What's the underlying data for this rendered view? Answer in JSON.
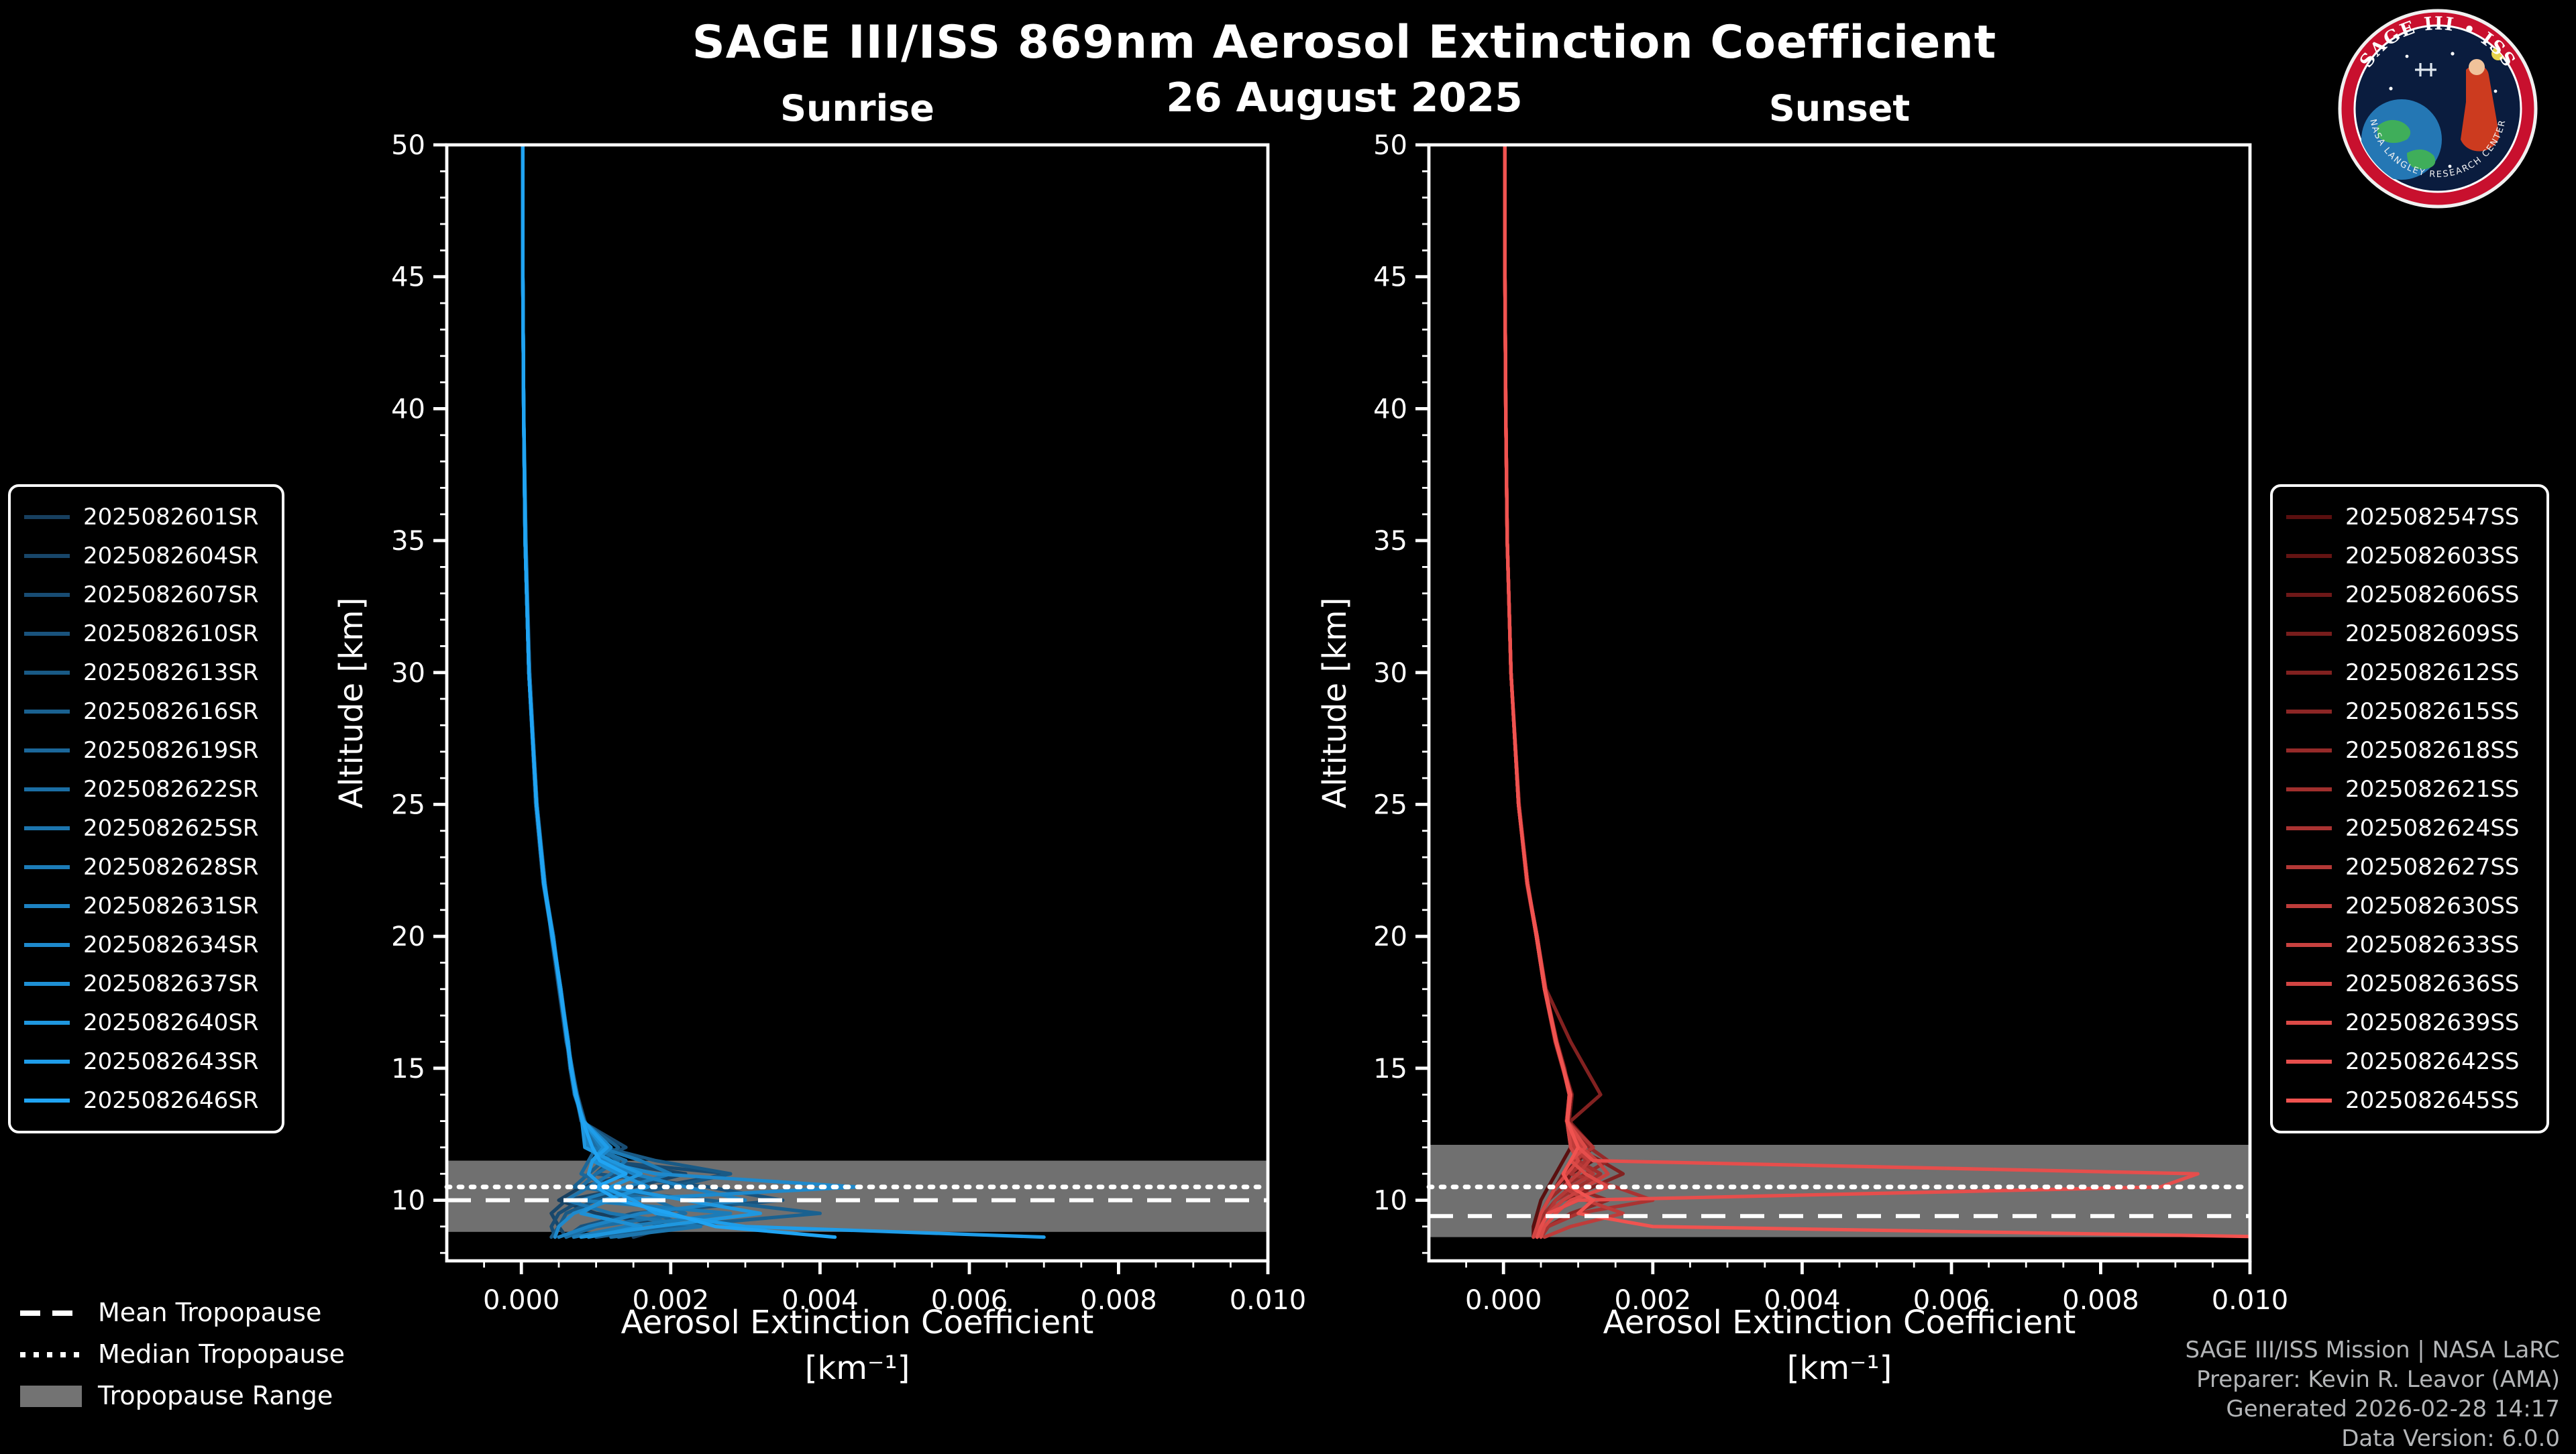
{
  "header": {
    "title": "SAGE III/ISS 869nm Aerosol Extinction Coefficient",
    "date": "26 August 2025"
  },
  "axes": {
    "y_label": "Altitude [km]",
    "x_label_line1": "Aerosol Extinction Coefficient",
    "x_label_line2": "[km⁻¹]"
  },
  "tropopause_legend": {
    "mean": "Mean Tropopause",
    "median": "Median Tropopause",
    "range": "Tropopause Range"
  },
  "footer": {
    "lines": [
      "SAGE III/ISS Mission | NASA LaRC",
      "Preparer: Kevin R. Leavor (AMA)",
      "Generated 2026-02-28 14:17",
      "Data Version: 6.0.0"
    ]
  },
  "logo": {
    "title": "SAGE III • ISS",
    "bottom_text": "NASA LANGLEY RESEARCH CENTER"
  },
  "colors": {
    "background": "#000000",
    "axis": "#ffffff",
    "tropopause_band": "#7f7f7f",
    "sunrise_accent": "#20A4F3",
    "sunset_accent": "#F05350"
  },
  "chart_data": {
    "type": "line",
    "title": "SAGE III/ISS 869nm Aerosol Extinction Coefficient",
    "subtitle": "26 August 2025",
    "xlabel": "Aerosol Extinction Coefficient [km⁻¹]",
    "ylabel": "Altitude [km]",
    "xlim": [
      -0.001,
      0.01
    ],
    "ylim": [
      7.7,
      50
    ],
    "xticks": {
      "values": [
        0,
        0.002,
        0.004,
        0.006,
        0.008,
        0.01
      ],
      "labels": [
        "0.000",
        "0.002",
        "0.004",
        "0.006",
        "0.008",
        "0.010"
      ]
    },
    "yticks": [
      10,
      15,
      20,
      25,
      30,
      35,
      40,
      45,
      50
    ],
    "grid": false,
    "legend_position": "sunrise legend outside-left, sunset legend outside-right",
    "values_unit": "10^-3 km^-1",
    "value_scale": 0.001,
    "altitudes_km": [
      50,
      45,
      40,
      35,
      30,
      25,
      22,
      20,
      18,
      16,
      15,
      14,
      13,
      12,
      11.5,
      11,
      10.5,
      10,
      9.5,
      9,
      8.6
    ],
    "panels": [
      {
        "name": "Sunrise",
        "event_type": "SR",
        "tropopause": {
          "mean_km": 10.0,
          "median_km": 10.5,
          "range_km": [
            8.8,
            11.5
          ]
        },
        "series": [
          {
            "id": "2025082601SR",
            "color": "#173F5F",
            "values": [
              0.02,
              0.02,
              0.03,
              0.05,
              0.1,
              0.2,
              0.3,
              0.42,
              0.52,
              0.62,
              0.66,
              0.72,
              0.82,
              0.95,
              1.2,
              1.5,
              0.8,
              0.5,
              1.0,
              2.0,
              1.5
            ]
          },
          {
            "id": "2025082604SR",
            "color": "#184669",
            "values": [
              0.02,
              0.02,
              0.03,
              0.06,
              0.11,
              0.21,
              0.32,
              0.4,
              0.5,
              0.6,
              0.68,
              0.75,
              0.85,
              1.0,
              1.0,
              2.2,
              1.5,
              0.6,
              0.4,
              0.5,
              0.6
            ]
          },
          {
            "id": "2025082607SR",
            "color": "#184C73",
            "values": [
              0.02,
              0.02,
              0.03,
              0.05,
              0.1,
              0.19,
              0.29,
              0.41,
              0.53,
              0.63,
              0.67,
              0.73,
              0.8,
              1.4,
              1.0,
              2.8,
              1.8,
              0.8,
              0.5,
              0.4,
              0.45
            ]
          },
          {
            "id": "2025082610SR",
            "color": "#19537D",
            "values": [
              0.02,
              0.02,
              0.03,
              0.05,
              0.1,
              0.2,
              0.31,
              0.43,
              0.51,
              0.61,
              0.65,
              0.71,
              0.83,
              0.9,
              1.2,
              1.0,
              2.5,
              3.5,
              1.5,
              0.8,
              0.6
            ]
          },
          {
            "id": "2025082613SR",
            "color": "#195A86",
            "values": [
              0.02,
              0.02,
              0.03,
              0.05,
              0.1,
              0.2,
              0.3,
              0.42,
              0.52,
              0.62,
              0.66,
              0.74,
              0.84,
              1.1,
              1.8,
              2.8,
              2.0,
              1.0,
              0.6,
              0.5,
              0.4
            ]
          },
          {
            "id": "2025082616SR",
            "color": "#1A6190",
            "values": [
              0.02,
              0.02,
              0.03,
              0.05,
              0.11,
              0.2,
              0.3,
              0.41,
              0.52,
              0.63,
              0.67,
              0.72,
              0.81,
              1.3,
              1.1,
              0.9,
              0.7,
              2.5,
              4.0,
              2.0,
              1.0
            ]
          },
          {
            "id": "2025082619SR",
            "color": "#1B679A",
            "values": [
              0.02,
              0.02,
              0.03,
              0.05,
              0.1,
              0.21,
              0.31,
              0.42,
              0.53,
              0.62,
              0.66,
              0.73,
              0.82,
              1.0,
              0.9,
              0.8,
              1.2,
              1.5,
              1.8,
              2.2,
              1.3
            ]
          },
          {
            "id": "2025082622SR",
            "color": "#1B6EA4",
            "values": [
              0.02,
              0.02,
              0.03,
              0.05,
              0.1,
              0.2,
              0.3,
              0.43,
              0.52,
              0.61,
              0.67,
              0.74,
              0.83,
              1.0,
              1.3,
              1.0,
              0.8,
              1.8,
              2.2,
              1.0,
              0.6
            ]
          },
          {
            "id": "2025082625SR",
            "color": "#1C75AE",
            "values": [
              0.02,
              0.02,
              0.03,
              0.05,
              0.1,
              0.2,
              0.31,
              0.42,
              0.51,
              0.62,
              0.68,
              0.73,
              0.81,
              0.95,
              1.4,
              1.2,
              0.9,
              0.6,
              1.2,
              2.4,
              1.2
            ]
          },
          {
            "id": "2025082628SR",
            "color": "#1C7CB8",
            "values": [
              0.02,
              0.02,
              0.03,
              0.06,
              0.1,
              0.2,
              0.3,
              0.42,
              0.52,
              0.63,
              0.66,
              0.72,
              0.84,
              1.05,
              1.6,
              2.0,
              1.4,
              0.8,
              2.8,
              1.4,
              0.7
            ]
          },
          {
            "id": "2025082631SR",
            "color": "#1D82C2",
            "values": [
              0.02,
              0.02,
              0.03,
              0.05,
              0.1,
              0.2,
              0.31,
              0.41,
              0.52,
              0.62,
              0.67,
              0.73,
              0.82,
              0.9,
              1.1,
              1.5,
              2.2,
              3.0,
              1.6,
              0.9,
              0.5
            ]
          },
          {
            "id": "2025082634SR",
            "color": "#1E89CC",
            "values": [
              0.02,
              0.02,
              0.03,
              0.05,
              0.1,
              0.2,
              0.3,
              0.42,
              0.53,
              0.62,
              0.66,
              0.72,
              0.83,
              1.2,
              1.0,
              1.8,
              4.5,
              1.2,
              0.7,
              0.5,
              0.45
            ]
          },
          {
            "id": "2025082637SR",
            "color": "#1E90D5",
            "values": [
              0.02,
              0.02,
              0.03,
              0.05,
              0.1,
              0.2,
              0.31,
              0.42,
              0.52,
              0.61,
              0.67,
              0.74,
              0.82,
              1.1,
              0.95,
              1.3,
              1.7,
              1.1,
              0.8,
              1.6,
              0.9
            ]
          },
          {
            "id": "2025082640SR",
            "color": "#1F97DF",
            "values": [
              0.02,
              0.02,
              0.03,
              0.05,
              0.1,
              0.2,
              0.3,
              0.41,
              0.52,
              0.62,
              0.66,
              0.73,
              0.81,
              0.85,
              1.2,
              1.6,
              1.2,
              2.2,
              3.2,
              1.8,
              0.8
            ]
          },
          {
            "id": "2025082643SR",
            "color": "#1F9DE9",
            "values": [
              0.02,
              0.02,
              0.03,
              0.05,
              0.1,
              0.2,
              0.31,
              0.42,
              0.52,
              0.62,
              0.67,
              0.72,
              0.83,
              1.15,
              0.95,
              0.9,
              1.1,
              1.5,
              1.8,
              3.0,
              7.0
            ]
          },
          {
            "id": "2025082646SR",
            "color": "#20A4F3",
            "values": [
              0.02,
              0.02,
              0.03,
              0.05,
              0.1,
              0.2,
              0.3,
              0.42,
              0.52,
              0.62,
              0.66,
              0.73,
              0.82,
              0.95,
              1.05,
              1.4,
              1.0,
              1.3,
              2.0,
              2.6,
              4.2
            ]
          }
        ]
      },
      {
        "name": "Sunset",
        "event_type": "SS",
        "tropopause": {
          "mean_km": 9.4,
          "median_km": 10.5,
          "range_km": [
            8.6,
            12.1
          ]
        },
        "series": [
          {
            "id": "2025082547SS",
            "color": "#5A0F0F",
            "values": [
              0.02,
              0.02,
              0.03,
              0.05,
              0.1,
              0.2,
              0.32,
              0.45,
              0.55,
              0.7,
              0.8,
              0.9,
              0.85,
              0.9,
              0.8,
              0.7,
              0.6,
              0.5,
              0.45,
              0.4,
              0.4
            ]
          },
          {
            "id": "2025082603SS",
            "color": "#641413",
            "values": [
              0.02,
              0.02,
              0.03,
              0.05,
              0.1,
              0.21,
              0.33,
              0.44,
              0.56,
              0.72,
              0.82,
              0.88,
              0.84,
              1.0,
              1.2,
              0.9,
              0.7,
              0.6,
              0.5,
              0.45,
              0.4
            ]
          },
          {
            "id": "2025082606SS",
            "color": "#6E1818",
            "values": [
              0.02,
              0.02,
              0.03,
              0.05,
              0.1,
              0.2,
              0.32,
              0.45,
              0.56,
              0.71,
              0.81,
              0.92,
              0.88,
              1.2,
              1.0,
              0.9,
              0.8,
              1.0,
              0.6,
              0.5,
              0.45
            ]
          },
          {
            "id": "2025082609SS",
            "color": "#781D1C",
            "values": [
              0.02,
              0.02,
              0.03,
              0.05,
              0.1,
              0.2,
              0.31,
              0.44,
              0.55,
              0.69,
              0.79,
              0.89,
              0.86,
              1.1,
              1.0,
              0.8,
              0.7,
              0.6,
              0.5,
              0.45,
              0.4
            ]
          },
          {
            "id": "2025082612SS",
            "color": "#822120",
            "values": [
              0.02,
              0.02,
              0.03,
              0.05,
              0.1,
              0.2,
              0.32,
              0.45,
              0.57,
              0.9,
              1.1,
              1.3,
              0.9,
              0.95,
              1.3,
              1.6,
              1.2,
              0.8,
              0.6,
              0.5,
              0.45
            ]
          },
          {
            "id": "2025082615SS",
            "color": "#8C2625",
            "values": [
              0.02,
              0.02,
              0.03,
              0.05,
              0.1,
              0.2,
              0.32,
              0.44,
              0.55,
              0.7,
              0.8,
              0.88,
              0.85,
              1.05,
              0.9,
              0.8,
              0.9,
              1.4,
              0.9,
              0.6,
              0.5
            ]
          },
          {
            "id": "2025082618SS",
            "color": "#962A29",
            "values": [
              0.02,
              0.02,
              0.03,
              0.05,
              0.1,
              0.21,
              0.32,
              0.45,
              0.56,
              0.71,
              0.81,
              0.9,
              0.86,
              1.15,
              1.4,
              1.1,
              0.8,
              0.6,
              0.5,
              0.45,
              0.4
            ]
          },
          {
            "id": "2025082621SS",
            "color": "#A02F2D",
            "values": [
              0.02,
              0.02,
              0.03,
              0.05,
              0.1,
              0.2,
              0.32,
              0.44,
              0.55,
              0.7,
              0.8,
              0.89,
              0.85,
              0.9,
              1.0,
              1.3,
              1.0,
              0.7,
              0.55,
              0.5,
              0.45
            ]
          },
          {
            "id": "2025082624SS",
            "color": "#AA3332",
            "values": [
              0.02,
              0.02,
              0.03,
              0.05,
              0.1,
              0.2,
              0.32,
              0.45,
              0.56,
              0.7,
              0.8,
              0.9,
              0.86,
              1.0,
              1.1,
              0.9,
              1.5,
              2.0,
              1.0,
              0.6,
              0.5
            ]
          },
          {
            "id": "2025082627SS",
            "color": "#B43836",
            "values": [
              0.02,
              0.02,
              0.03,
              0.05,
              0.1,
              0.2,
              0.32,
              0.44,
              0.55,
              0.7,
              0.8,
              0.88,
              0.85,
              1.2,
              0.95,
              1.2,
              0.9,
              0.7,
              0.6,
              0.5,
              0.45
            ]
          },
          {
            "id": "2025082630SS",
            "color": "#BE3C3A",
            "values": [
              0.02,
              0.02,
              0.03,
              0.05,
              0.1,
              0.2,
              0.32,
              0.45,
              0.55,
              0.71,
              0.81,
              0.9,
              0.86,
              0.95,
              1.15,
              1.0,
              0.8,
              1.1,
              1.6,
              0.9,
              0.55
            ]
          },
          {
            "id": "2025082633SS",
            "color": "#C8413F",
            "values": [
              0.02,
              0.02,
              0.03,
              0.05,
              0.1,
              0.2,
              0.32,
              0.44,
              0.56,
              0.7,
              0.8,
              0.89,
              0.85,
              1.05,
              1.25,
              1.4,
              1.1,
              0.8,
              0.6,
              0.5,
              0.45
            ]
          },
          {
            "id": "2025082636SS",
            "color": "#D24543",
            "values": [
              0.02,
              0.02,
              0.03,
              0.05,
              0.1,
              0.2,
              0.32,
              0.45,
              0.55,
              0.7,
              0.8,
              0.9,
              0.85,
              0.9,
              1.0,
              0.85,
              0.7,
              0.6,
              0.5,
              0.45,
              0.4
            ]
          },
          {
            "id": "2025082639SS",
            "color": "#DC4A47",
            "values": [
              0.02,
              0.02,
              0.03,
              0.05,
              0.1,
              0.2,
              0.32,
              0.44,
              0.55,
              0.7,
              0.8,
              0.88,
              0.85,
              1.1,
              0.9,
              1.1,
              1.4,
              0.9,
              0.7,
              0.55,
              0.5
            ]
          },
          {
            "id": "2025082642SS",
            "color": "#E64E4C",
            "values": [
              0.02,
              0.02,
              0.03,
              0.05,
              0.1,
              0.2,
              0.32,
              0.45,
              0.56,
              0.71,
              0.8,
              0.9,
              0.86,
              1.0,
              1.2,
              9.3,
              8.8,
              1.0,
              0.6,
              0.5,
              0.45
            ]
          },
          {
            "id": "2025082645SS",
            "color": "#F05350",
            "values": [
              0.02,
              0.02,
              0.03,
              0.05,
              0.1,
              0.2,
              0.32,
              0.44,
              0.55,
              0.7,
              0.8,
              0.89,
              0.85,
              1.0,
              0.9,
              0.8,
              0.9,
              1.2,
              1.0,
              2.0,
              10.5
            ]
          }
        ]
      }
    ]
  }
}
